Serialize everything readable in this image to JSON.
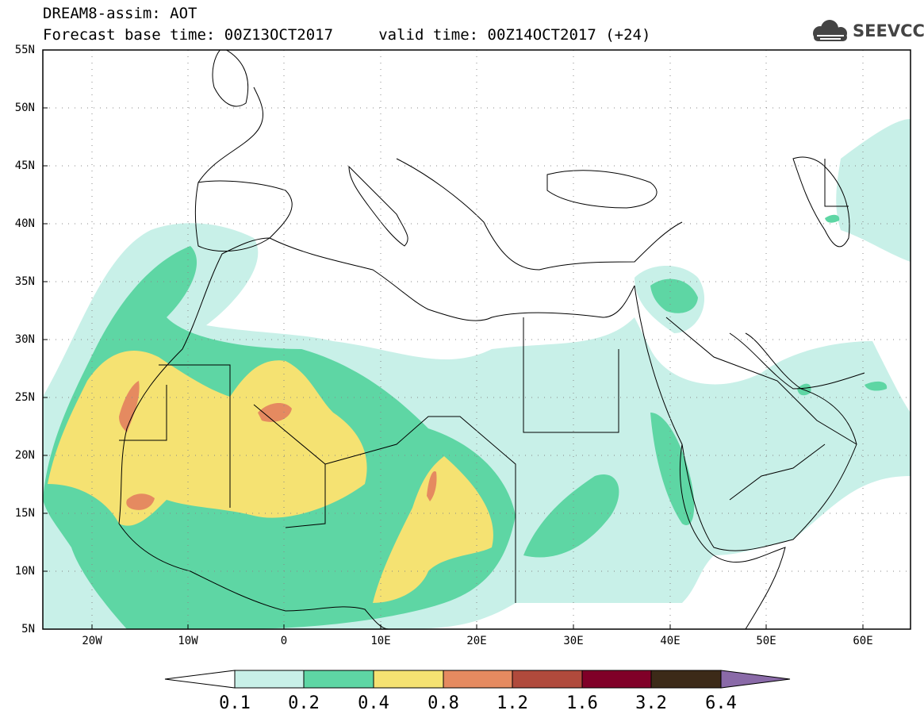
{
  "header": {
    "line1": "DREAM8-assim: AOT",
    "line2": "Forecast base time: 00Z13OCT2017     valid time: 00Z14OCT2017 (+24)"
  },
  "logo": {
    "text": "SEEVCCC",
    "icon": "cloud-icon"
  },
  "map": {
    "lat_labels": [
      "55N",
      "50N",
      "45N",
      "40N",
      "35N",
      "30N",
      "25N",
      "20N",
      "15N",
      "10N",
      "5N"
    ],
    "lon_labels": [
      "20W",
      "10W",
      "0",
      "10E",
      "20E",
      "30E",
      "40E",
      "50E",
      "60E"
    ],
    "lat_range": [
      5,
      55
    ],
    "lon_range": [
      -25,
      65
    ],
    "grid": "dotted"
  },
  "colorbar": {
    "labels": [
      "0.1",
      "0.2",
      "0.4",
      "0.8",
      "1.2",
      "1.6",
      "3.2",
      "6.4"
    ],
    "colors": [
      "#ffffff",
      "#c8f0e8",
      "#5ed6a4",
      "#f5e272",
      "#e58a60",
      "#b04a3c",
      "#800028",
      "#3c2a18",
      "#8a6aa8"
    ]
  },
  "colors": {
    "c1": "#c8f0e8",
    "c2": "#5ed6a4",
    "c3": "#f5e272",
    "c4": "#e58a60"
  }
}
